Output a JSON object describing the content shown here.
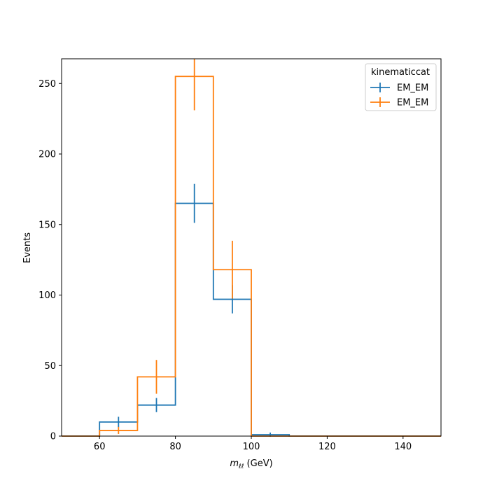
{
  "chart_data": {
    "type": "histogram-step-errorbar",
    "xlabel_main": "m",
    "xlabel_sub": "ℓℓ",
    "xlabel_unit": " (GeV)",
    "ylabel": "Events",
    "xlim": [
      50,
      150
    ],
    "ylim": [
      0,
      267.5
    ],
    "xticks": [
      60,
      80,
      100,
      120,
      140
    ],
    "yticks": [
      0,
      50,
      100,
      150,
      200,
      250
    ],
    "bin_edges": [
      50,
      60,
      70,
      80,
      90,
      100,
      110,
      120,
      130,
      140,
      150
    ],
    "legend": {
      "title": "kinematiccat",
      "placement": "top-right"
    },
    "series": [
      {
        "name": "EM_EM",
        "color": "#1f77b4",
        "values": [
          0,
          10,
          22,
          165,
          97,
          1,
          0,
          0,
          0,
          0
        ],
        "errors": [
          0,
          3.7,
          5.0,
          13.8,
          10.0,
          1.5,
          0,
          0,
          0,
          0
        ]
      },
      {
        "name": "EM_EM",
        "color": "#ff7f0e",
        "values": [
          0,
          4,
          42,
          255,
          118,
          0,
          0,
          0,
          0,
          0
        ],
        "errors": [
          0,
          2.5,
          12.0,
          24.0,
          20.5,
          0,
          0,
          0,
          0,
          0
        ]
      }
    ]
  }
}
